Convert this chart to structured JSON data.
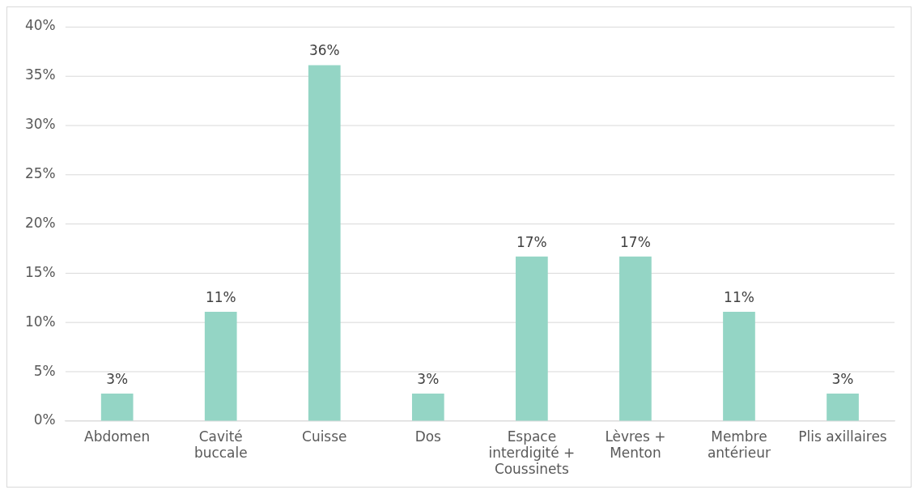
{
  "chart_data": {
    "type": "bar",
    "categories": [
      "Abdomen",
      "Cavité buccale",
      "Cuisse",
      "Dos",
      "Espace interdigité + Coussinets",
      "Lèvres + Menton",
      "Membre antérieur",
      "Plis axillaires"
    ],
    "values": [
      2.8,
      11.1,
      36.1,
      2.8,
      16.7,
      16.7,
      11.1,
      2.8
    ],
    "value_labels": [
      "3%",
      "11%",
      "36%",
      "3%",
      "17%",
      "17%",
      "11%",
      "3%"
    ],
    "color": "#94d5c5",
    "ylim": [
      0,
      40
    ],
    "yticks": [
      {
        "value": 0,
        "label": "0%"
      },
      {
        "value": 5,
        "label": "5%"
      },
      {
        "value": 10,
        "label": "10%"
      },
      {
        "value": 15,
        "label": "15%"
      },
      {
        "value": 20,
        "label": "20%"
      },
      {
        "value": 25,
        "label": "25%"
      },
      {
        "value": 30,
        "label": "30%"
      },
      {
        "value": 35,
        "label": "35%"
      },
      {
        "value": 40,
        "label": "40%"
      }
    ],
    "grid": "y",
    "legend": false
  }
}
